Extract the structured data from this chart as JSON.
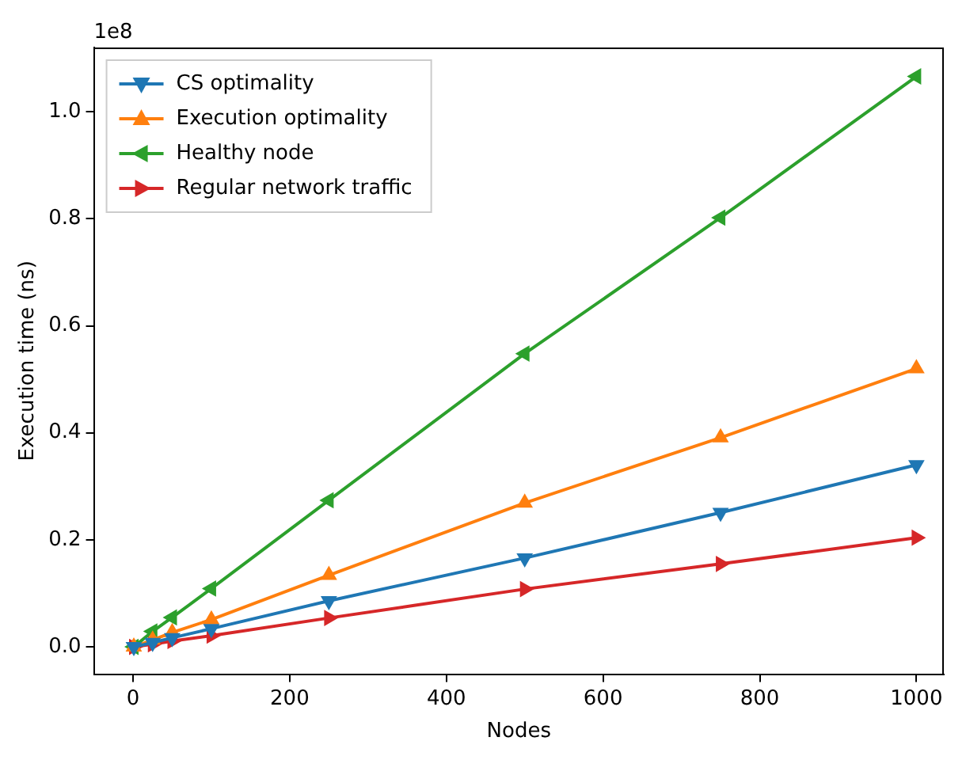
{
  "chart_data": {
    "type": "line",
    "xlabel": "Nodes",
    "ylabel": "Execution time (ns)",
    "annotations": [
      "1e8"
    ],
    "x": [
      1,
      25,
      50,
      100,
      250,
      500,
      750,
      1000
    ],
    "series": [
      {
        "name": "CS optimality",
        "color": "#1f77b4",
        "values": [
          0.0,
          0.008,
          0.017,
          0.034,
          0.086,
          0.166,
          0.251,
          0.34
        ]
      },
      {
        "name": "Execution optimality",
        "color": "#ff7f0e",
        "values": [
          0.0,
          0.013,
          0.027,
          0.051,
          0.134,
          0.269,
          0.391,
          0.52
        ]
      },
      {
        "name": "Healthy node",
        "color": "#2ca02c",
        "values": [
          0.0,
          0.029,
          0.055,
          0.109,
          0.274,
          0.548,
          0.802,
          1.066
        ]
      },
      {
        "name": "Regular network traffic",
        "color": "#d62728",
        "values": [
          0.0,
          0.005,
          0.011,
          0.021,
          0.054,
          0.108,
          0.155,
          0.204
        ]
      }
    ],
    "xlim": [
      -50,
      1035
    ],
    "xticks": [
      0,
      200,
      400,
      600,
      800,
      1000
    ],
    "ylim": [
      -0.051,
      1.12
    ],
    "yticks": [
      {
        "value": 0,
        "label": "0.0"
      },
      0.2,
      0.4,
      0.6,
      0.8,
      {
        "value": 1,
        "label": "1.0"
      }
    ],
    "grid": false,
    "legend": "top left",
    "marker": "triangle",
    "line_style": "solid"
  }
}
